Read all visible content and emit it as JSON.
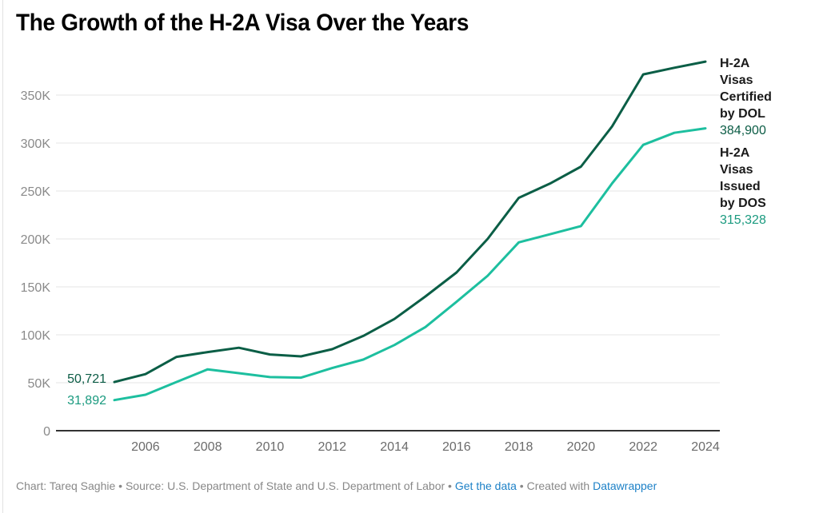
{
  "chart_data": {
    "type": "line",
    "title": "The Growth of the H-2A Visa Over the Years",
    "xlabel": "",
    "ylabel": "",
    "x": [
      2005,
      2006,
      2007,
      2008,
      2009,
      2010,
      2011,
      2012,
      2013,
      2014,
      2015,
      2016,
      2017,
      2018,
      2019,
      2020,
      2021,
      2022,
      2023,
      2024
    ],
    "xlim": [
      2005,
      2024
    ],
    "ylim": [
      0,
      370000
    ],
    "x_ticks": [
      {
        "value": 2006,
        "label": "2006"
      },
      {
        "value": 2008,
        "label": "2008"
      },
      {
        "value": 2010,
        "label": "2010"
      },
      {
        "value": 2012,
        "label": "2012"
      },
      {
        "value": 2014,
        "label": "2014"
      },
      {
        "value": 2016,
        "label": "2016"
      },
      {
        "value": 2018,
        "label": "2018"
      },
      {
        "value": 2020,
        "label": "2020"
      },
      {
        "value": 2022,
        "label": "2022"
      },
      {
        "value": 2024,
        "label": "2024"
      }
    ],
    "y_ticks": [
      {
        "value": 0,
        "label": "0"
      },
      {
        "value": 50000,
        "label": "50K"
      },
      {
        "value": 100000,
        "label": "100K"
      },
      {
        "value": 150000,
        "label": "150K"
      },
      {
        "value": 200000,
        "label": "200K"
      },
      {
        "value": 250000,
        "label": "250K"
      },
      {
        "value": 300000,
        "label": "300K"
      },
      {
        "value": 350000,
        "label": "350K"
      }
    ],
    "grid": true,
    "legend": "direct labels at right end of lines",
    "series": [
      {
        "name": "H-2A Visas Certified by DOL",
        "name_lines": [
          "H-2A",
          "Visas",
          "Certified",
          "by DOL"
        ],
        "color": "#0b5e46",
        "label_color": "#0b5c45",
        "start_label": "50,721",
        "end_label": "384,900",
        "values": [
          50721,
          59000,
          77000,
          82000,
          86500,
          79500,
          77500,
          85000,
          98800,
          116500,
          140000,
          165000,
          200000,
          242800,
          257700,
          275400,
          317300,
          371600,
          378500,
          384900
        ]
      },
      {
        "name": "H-2A Visas Issued by DOS",
        "name_lines": [
          "H-2A",
          "Visas",
          "Issued",
          "by DOS"
        ],
        "color": "#1dbf9f",
        "label_color": "#1a9a7f",
        "start_label": "31,892",
        "end_label": "315,328",
        "values": [
          31892,
          37500,
          50800,
          64000,
          60000,
          55900,
          55300,
          65300,
          74200,
          89300,
          108100,
          134400,
          161600,
          196400,
          204800,
          213400,
          257900,
          298100,
          310700,
          315328
        ]
      }
    ]
  },
  "footer": {
    "chart_credit": "Chart: Tareq Saghie",
    "separator": " • ",
    "source": "Source: U.S. Department of State and U.S. Department of Labor",
    "get_data_link": "Get the data",
    "created_with": "Created with ",
    "datawrapper_link": "Datawrapper"
  }
}
